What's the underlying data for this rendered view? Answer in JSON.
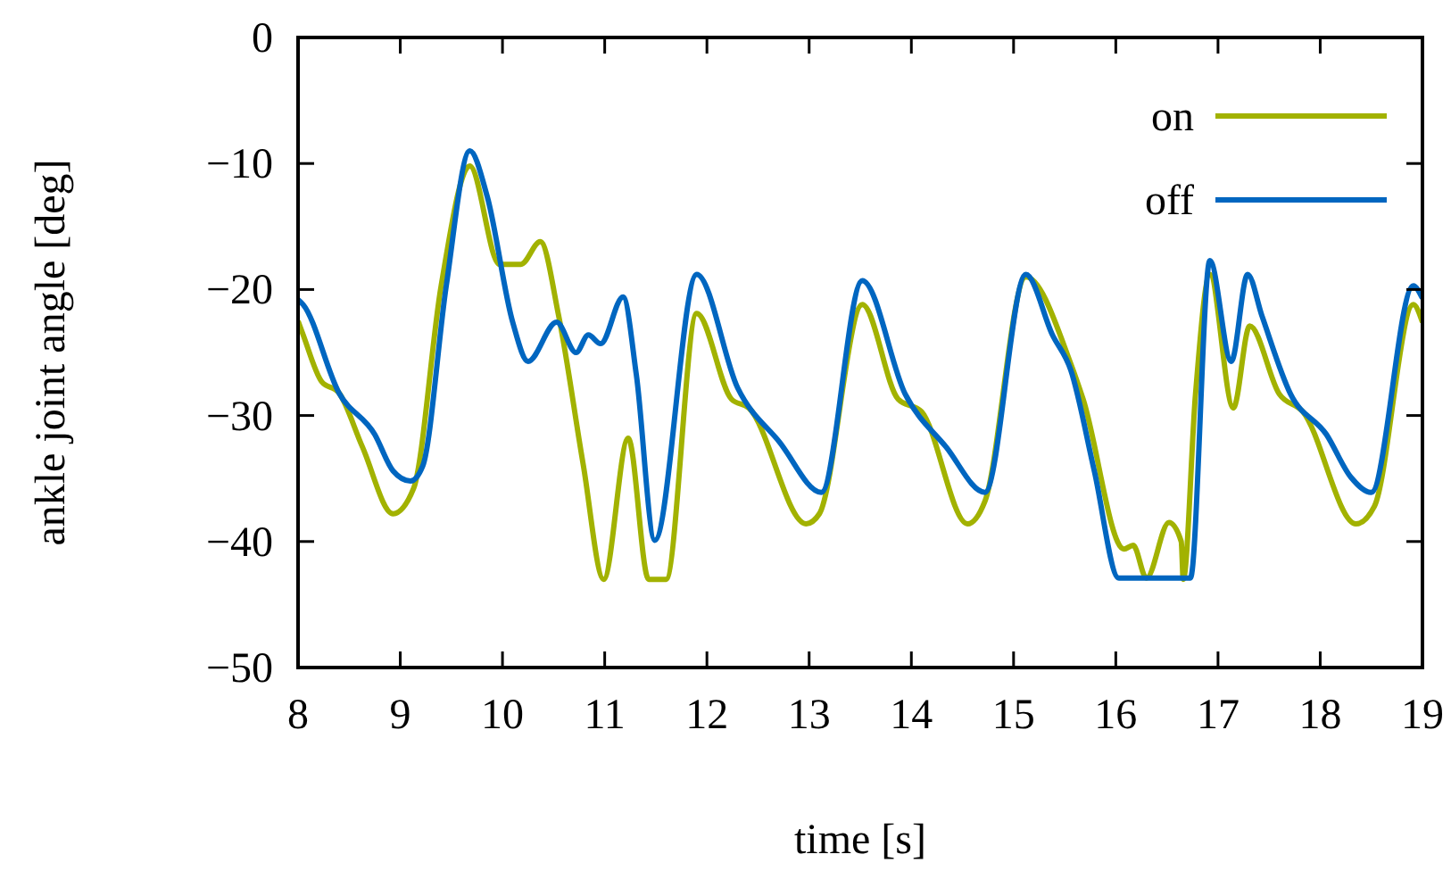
{
  "chart_data": {
    "type": "line",
    "xlabel": "time [s]",
    "ylabel": "ankle joint angle [deg]",
    "xlim": [
      8,
      19
    ],
    "xticks": [
      8,
      9,
      10,
      11,
      12,
      13,
      14,
      15,
      16,
      17,
      18,
      19
    ],
    "ylim": [
      -50,
      0
    ],
    "yticks": [
      -50,
      -40,
      -30,
      -20,
      -10,
      0
    ],
    "grid": false,
    "legend": "top right",
    "line_style": "solid",
    "series": [
      {
        "name": "on",
        "color": "#a2b200",
        "x": [
          8,
          8.05,
          8.23,
          8.4,
          8.63,
          8.93,
          9.13,
          9.4,
          9.68,
          9.97,
          10.18,
          10.37,
          10.55,
          10.79,
          10.99,
          11.23,
          11.43,
          11.6,
          11.9,
          12.24,
          12.41,
          12.97,
          13.1,
          13.52,
          13.87,
          14.1,
          14.55,
          14.72,
          15.12,
          15.56,
          15.68,
          16.08,
          16.17,
          16.3,
          16.52,
          16.64,
          16.66,
          16.78,
          16.92,
          17.15,
          17.31,
          17.6,
          17.83,
          18.35,
          18.53,
          18.91,
          19
        ],
        "values": [
          -22.5,
          -23.6,
          -27.3,
          -28.2,
          -32.5,
          -37.8,
          -35.8,
          -19.7,
          -10.2,
          -18,
          -18,
          -16.2,
          -22.1,
          -33.9,
          -43,
          -31.8,
          -43,
          -43,
          -21.9,
          -28.7,
          -29.4,
          -38.6,
          -37.8,
          -21.2,
          -28.7,
          -29.7,
          -38.6,
          -36.8,
          -19,
          -25.9,
          -28.7,
          -40.6,
          -40.3,
          -42.9,
          -38.5,
          -40,
          -43,
          -28.3,
          -18.8,
          -29.4,
          -22.9,
          -28.3,
          -29.7,
          -38.6,
          -37.2,
          -21.2,
          -22.6
        ]
      },
      {
        "name": "off",
        "color": "#0066c0",
        "x": [
          8,
          8.05,
          8.4,
          8.75,
          8.93,
          9.1,
          9.22,
          9.45,
          9.68,
          9.85,
          10.1,
          10.25,
          10.53,
          10.72,
          10.84,
          10.96,
          11.18,
          11.31,
          11.49,
          11.9,
          12.3,
          12.71,
          13.12,
          13.52,
          13.94,
          14.34,
          14.72,
          15.12,
          15.38,
          15.56,
          15.79,
          16.03,
          16.73,
          16.92,
          17.13,
          17.29,
          17.43,
          17.71,
          18.06,
          18.3,
          18.5,
          18.91,
          19
        ],
        "values": [
          -20.8,
          -21.2,
          -28.2,
          -31.5,
          -34.4,
          -35.2,
          -34,
          -19.7,
          -9,
          -12.6,
          -22.6,
          -25.7,
          -22.6,
          -25,
          -23.6,
          -24.3,
          -20.6,
          -26.8,
          -39.9,
          -18.8,
          -27.8,
          -32.1,
          -36.1,
          -19.3,
          -28.3,
          -32.5,
          -36.1,
          -18.8,
          -23.6,
          -26.4,
          -34.4,
          -42.9,
          -42.9,
          -17.7,
          -25.7,
          -18.8,
          -22.1,
          -28.3,
          -31.5,
          -34.9,
          -36.1,
          -19.7,
          -20.7
        ]
      }
    ]
  }
}
